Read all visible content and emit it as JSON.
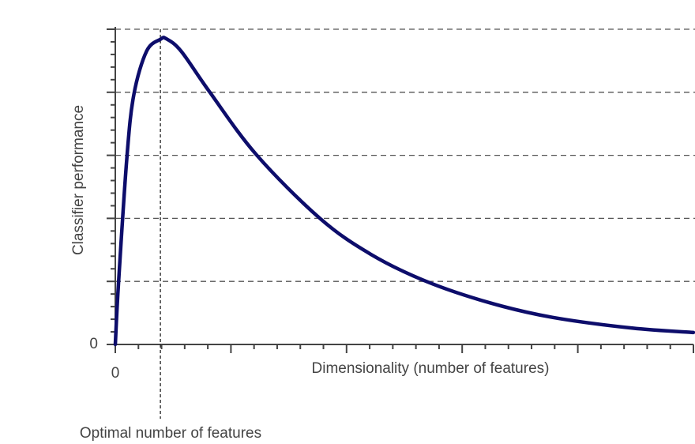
{
  "chart_data": {
    "type": "line",
    "xlabel": "Dimensionality (number of features)",
    "ylabel": "Classifier performance",
    "annotation": "Optimal number of features",
    "optimal_x": 0.39,
    "xlim": [
      0,
      5
    ],
    "ylim": [
      0,
      5
    ],
    "xticks": [
      {
        "value": 0,
        "label": "0"
      },
      {
        "value": 1,
        "label": null
      },
      {
        "value": 2,
        "label": null
      },
      {
        "value": 3,
        "label": null
      },
      {
        "value": 4,
        "label": null
      },
      {
        "value": 5,
        "label": null
      }
    ],
    "yticks": [
      {
        "value": 0,
        "label": "0"
      },
      {
        "value": 1,
        "label": null
      },
      {
        "value": 2,
        "label": null
      },
      {
        "value": 3,
        "label": null
      },
      {
        "value": 4,
        "label": null
      },
      {
        "value": 5,
        "label": null
      }
    ],
    "grid": true,
    "series": [
      {
        "name": null,
        "color": "#0d0d6b",
        "x": [
          0,
          0.027,
          0.1,
          0.16,
          0.27,
          0.39,
          0.44,
          0.57,
          0.81,
          1.22,
          1.77,
          2.21,
          2.69,
          3.24,
          3.78,
          4.47,
          5
        ],
        "values": [
          0,
          0.95,
          2.96,
          3.96,
          4.65,
          4.84,
          4.85,
          4.65,
          4.02,
          3.01,
          2.0,
          1.43,
          1.0,
          0.66,
          0.43,
          0.26,
          0.19
        ]
      }
    ]
  }
}
